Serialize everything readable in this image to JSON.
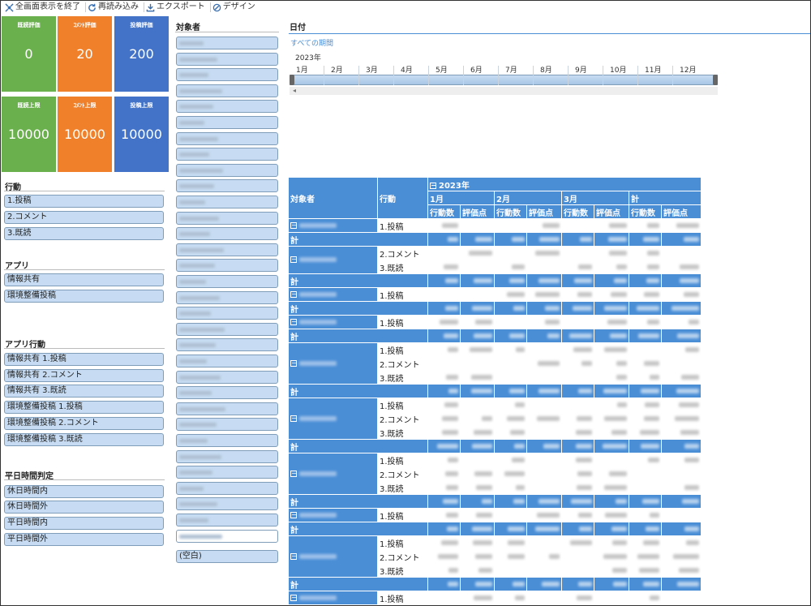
{
  "toolbar": {
    "exit_fullscreen": "全画面表示を終了",
    "reload": "再読み込み",
    "export": "エクスポート",
    "design": "デザイン"
  },
  "kpis": [
    {
      "title": "既読評価",
      "value": "0",
      "color": "#6ab04c"
    },
    {
      "title": "ｺﾒﾝﾄ評価",
      "value": "20",
      "color": "#f0802a"
    },
    {
      "title": "投稿評価",
      "value": "200",
      "color": "#4273c8"
    },
    {
      "title": "既読上限",
      "value": "10000",
      "color": "#6ab04c"
    },
    {
      "title": "ｺﾒﾝﾄ上限",
      "value": "10000",
      "color": "#f0802a"
    },
    {
      "title": "投稿上限",
      "value": "10000",
      "color": "#4273c8"
    }
  ],
  "filters": {
    "action": {
      "title": "行動",
      "items": [
        "1.投稿",
        "2.コメント",
        "3.既読"
      ]
    },
    "app": {
      "title": "アプリ",
      "items": [
        "情報共有",
        "環境整備投稿"
      ]
    },
    "app_action": {
      "title": "アプリ行動",
      "items": [
        "情報共有 1.投稿",
        "情報共有 2.コメント",
        "情報共有 3.既読",
        "環境整備投稿 1.投稿",
        "環境整備投稿 2.コメント",
        "環境整備投稿 3.既読"
      ]
    },
    "weekday": {
      "title": "平日時間判定",
      "items": [
        "休日時間内",
        "休日時間外",
        "平日時間内",
        "平日時間外"
      ]
    }
  },
  "subjects": {
    "title": "対象者",
    "blank_item": "(空白)"
  },
  "date_slicer": {
    "title": "日付",
    "all_periods": "すべての期間",
    "year": "2023年",
    "months": [
      "1月",
      "2月",
      "3月",
      "4月",
      "5月",
      "6月",
      "7月",
      "8月",
      "9月",
      "10月",
      "11月",
      "12月"
    ]
  },
  "pivot": {
    "row_header": "対象者",
    "action_header": "行動",
    "year_header": "2023年",
    "months": [
      "1月",
      "2月",
      "3月",
      "計"
    ],
    "measures": [
      "行動数",
      "評価点"
    ],
    "total_label": "計",
    "groups": [
      {
        "actions": [
          "1.投稿"
        ]
      },
      {
        "actions": [
          "2.コメント",
          "3.既読"
        ]
      },
      {
        "actions": [
          "1.投稿"
        ]
      },
      {
        "actions": [
          "1.投稿"
        ]
      },
      {
        "actions": [
          "1.投稿",
          "2.コメント",
          "3.既読"
        ]
      },
      {
        "actions": [
          "1.投稿",
          "2.コメント",
          "3.既読"
        ]
      },
      {
        "actions": [
          "1.投稿",
          "2.コメント",
          "3.既読"
        ]
      },
      {
        "actions": [
          "1.投稿"
        ]
      },
      {
        "actions": [
          "1.投稿",
          "2.コメント",
          "3.既読"
        ]
      },
      {
        "actions": [
          "1.投稿"
        ]
      }
    ]
  }
}
